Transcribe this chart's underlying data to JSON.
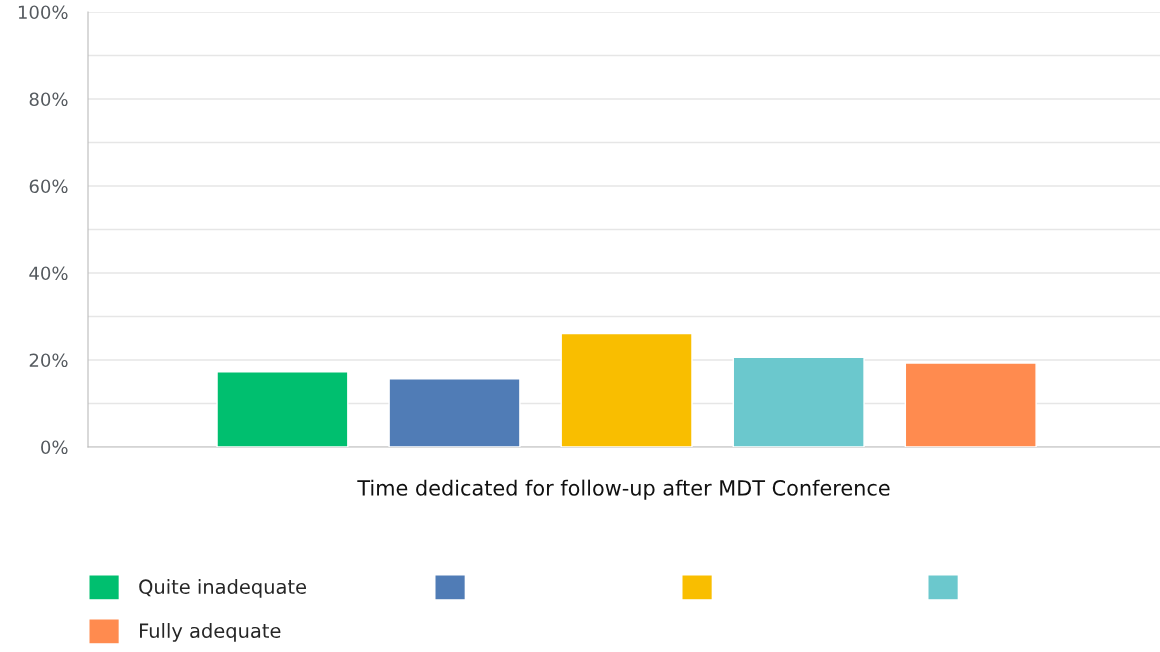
{
  "chart_data": {
    "type": "bar",
    "xlabel": "Time dedicated for follow-up after MDT Conference",
    "categories": [
      null
    ],
    "series": [
      {
        "name": "Quite inadequate",
        "color": "#00bf6f",
        "values": [
          17.3
        ]
      },
      {
        "name": null,
        "color": "#507cb6",
        "values": [
          15.7
        ]
      },
      {
        "name": null,
        "color": "#f9be00",
        "values": [
          26.1
        ]
      },
      {
        "name": null,
        "color": "#6bc8cd",
        "values": [
          20.6
        ]
      },
      {
        "name": "Fully adequate",
        "color": "#ff8b4f",
        "values": [
          19.3
        ]
      }
    ],
    "ylim": [
      0,
      100
    ],
    "yticks": [
      {
        "value": 0,
        "label": "0%"
      },
      {
        "value": 10,
        "label": null
      },
      {
        "value": 20,
        "label": "20%"
      },
      {
        "value": 30,
        "label": null
      },
      {
        "value": 40,
        "label": "40%"
      },
      {
        "value": 50,
        "label": null
      },
      {
        "value": 60,
        "label": "60%"
      },
      {
        "value": 70,
        "label": null
      },
      {
        "value": 80,
        "label": "80%"
      },
      {
        "value": 90,
        "label": null
      },
      {
        "value": 100,
        "label": "100%"
      }
    ],
    "grid": "y",
    "legend": "bottom"
  }
}
